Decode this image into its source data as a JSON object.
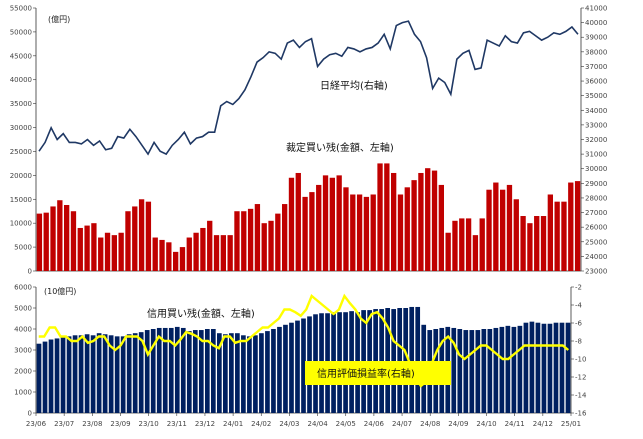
{
  "chart_data": [
    {
      "type": "bar+line",
      "left_unit_label": "(億円)",
      "left_axis": {
        "min": 0,
        "max": 55000,
        "step": 5000
      },
      "right_axis": {
        "min": 23000,
        "max": 41000,
        "step": 1000
      },
      "bar_series": {
        "name": "裁定買い残(金額、左軸)",
        "color": "#C00000",
        "values": [
          12000,
          12200,
          13500,
          14800,
          13800,
          12500,
          9000,
          9500,
          10000,
          7000,
          8000,
          7500,
          8000,
          12500,
          13500,
          15000,
          14500,
          7000,
          6500,
          6000,
          4000,
          5000,
          7000,
          8000,
          9000,
          10500,
          7500,
          7500,
          7500,
          12500,
          12500,
          13000,
          14000,
          10000,
          10500,
          12000,
          14000,
          19500,
          20500,
          15500,
          16500,
          18000,
          20000,
          19500,
          20000,
          17500,
          16000,
          16000,
          15500,
          16000,
          22500,
          22500,
          20500,
          16000,
          17500,
          19000,
          20500,
          21500,
          21000,
          18000,
          8000,
          10500,
          11000,
          11000,
          7500,
          11000,
          17000,
          18500,
          17000,
          18000,
          15000,
          11500,
          10000,
          11500,
          11500,
          16000,
          14500,
          14500,
          18500,
          18800
        ]
      },
      "line_series": {
        "name": "日経平均(右軸)",
        "color": "#1F3864",
        "values": [
          31200,
          31800,
          32800,
          32000,
          32400,
          31800,
          31800,
          31700,
          32000,
          31600,
          31900,
          31300,
          31400,
          32200,
          32100,
          32700,
          32200,
          31600,
          31000,
          31800,
          31200,
          31000,
          31600,
          32000,
          32500,
          31700,
          32100,
          32200,
          32500,
          32500,
          34300,
          34600,
          34400,
          34800,
          35400,
          36300,
          37300,
          37600,
          38000,
          37900,
          37500,
          38600,
          38800,
          38300,
          38700,
          38900,
          37000,
          37500,
          37800,
          37900,
          37700,
          38300,
          38200,
          38000,
          38200,
          38300,
          38600,
          39200,
          38200,
          39800,
          40000,
          40100,
          39200,
          38700,
          37600,
          35500,
          36200,
          35900,
          35100,
          37500,
          37900,
          38100,
          36800,
          36900,
          38800,
          38600,
          38400,
          39100,
          38700,
          38600,
          39300,
          39400,
          39100,
          38800,
          39000,
          39300,
          39200,
          39400,
          39700,
          39200
        ]
      },
      "annotations": [
        "日経平均(右軸)",
        "裁定買い残(金額、左軸)"
      ]
    },
    {
      "type": "bar+line",
      "left_unit_label": "(10億円)",
      "left_axis": {
        "min": 0,
        "max": 6000,
        "step": 1000
      },
      "right_axis": {
        "min": -16,
        "max": -2,
        "step": 2,
        "inverted": true
      },
      "x_tick_labels": [
        "23/06",
        "23/07",
        "23/08",
        "23/09",
        "23/10",
        "23/11",
        "23/12",
        "24/01",
        "24/02",
        "24/03",
        "24/04",
        "24/05",
        "24/06",
        "24/07",
        "24/08",
        "24/09",
        "24/10",
        "24/11",
        "24/12",
        "25/01"
      ],
      "bar_series": {
        "name": "信用買い残(金額、左軸)",
        "color": "#002060",
        "values": [
          3300,
          3400,
          3500,
          3550,
          3600,
          3650,
          3700,
          3700,
          3750,
          3700,
          3800,
          3750,
          3700,
          3650,
          3650,
          3750,
          3800,
          3850,
          3950,
          4000,
          4050,
          4050,
          4050,
          4100,
          4050,
          3900,
          3950,
          3950,
          4000,
          4000,
          3800,
          3750,
          3800,
          3800,
          3700,
          3650,
          3700,
          3800,
          3900,
          4000,
          4100,
          4200,
          4300,
          4400,
          4500,
          4600,
          4700,
          4750,
          4750,
          4800,
          4800,
          4800,
          4850,
          4800,
          4900,
          4900,
          4950,
          4950,
          5000,
          4950,
          5000,
          5000,
          5050,
          5050,
          4200,
          3950,
          4000,
          4050,
          4100,
          4050,
          4000,
          3950,
          3950,
          3950,
          4000,
          4000,
          4050,
          4100,
          4150,
          4100,
          4150,
          4300,
          4350,
          4300,
          4250,
          4250,
          4300,
          4300,
          4300
        ]
      },
      "line_series": {
        "name": "信用評価損益率(右軸)",
        "color": "#FFFF00",
        "values": [
          -7.5,
          -7.5,
          -6.5,
          -6.5,
          -7.5,
          -7.5,
          -8.0,
          -8.0,
          -7.5,
          -8.2,
          -8.0,
          -7.5,
          -7.5,
          -8.5,
          -9.0,
          -8.5,
          -7.5,
          -7.5,
          -7.5,
          -8.0,
          -9.5,
          -8.5,
          -7.5,
          -8.0,
          -8.0,
          -8.5,
          -7.8,
          -7.0,
          -7.2,
          -7.5,
          -8.0,
          -8.0,
          -8.5,
          -8.8,
          -7.5,
          -7.5,
          -8.2,
          -8.0,
          -8.0,
          -7.5,
          -7.0,
          -6.5,
          -6.5,
          -6.0,
          -5.5,
          -4.5,
          -4.5,
          -4.8,
          -5.2,
          -4.5,
          -3.0,
          -3.5,
          -4.0,
          -4.5,
          -5.0,
          -4.5,
          -3.0,
          -3.8,
          -4.5,
          -5.5,
          -6.0,
          -5.0,
          -4.8,
          -5.5,
          -6.5,
          -8.0,
          -8.5,
          -9.0,
          -10.5,
          -12.0,
          -13.0,
          -12.5,
          -10.5,
          -9.0,
          -8.0,
          -7.5,
          -8.2,
          -9.5,
          -10.0,
          -9.5,
          -9.0,
          -8.5,
          -8.5,
          -9.0,
          -9.5,
          -10.0,
          -10.0,
          -9.5,
          -9.0,
          -8.5,
          -8.5,
          -8.5,
          -8.5,
          -8.5,
          -8.5,
          -8.5,
          -8.5,
          -9.0
        ]
      },
      "annotations": [
        "信用買い残(金額、左軸)",
        "信用評価損益率(右軸)"
      ]
    }
  ]
}
